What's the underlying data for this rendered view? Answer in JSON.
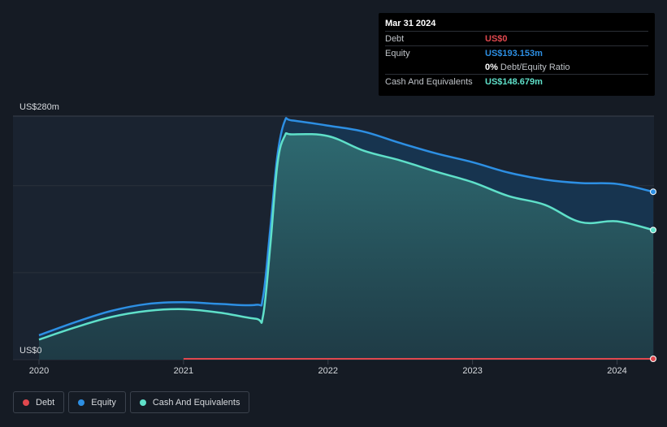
{
  "chart_data": {
    "type": "area",
    "y_top_label": "US$280m",
    "y_bottom_label": "US$0",
    "ylim": [
      0,
      280
    ],
    "xlim": [
      2020.0,
      2024.25
    ],
    "x_ticks": [
      {
        "value": 2020.0,
        "label": "2020"
      },
      {
        "value": 2021.0,
        "label": "2021"
      },
      {
        "value": 2022.0,
        "label": "2022"
      },
      {
        "value": 2023.0,
        "label": "2023"
      },
      {
        "value": 2024.0,
        "label": "2024"
      }
    ],
    "series": [
      {
        "name": "Equity",
        "color": "#2d8fe3",
        "points": [
          [
            2020.0,
            28
          ],
          [
            2020.25,
            43
          ],
          [
            2020.5,
            56
          ],
          [
            2020.75,
            64
          ],
          [
            2021.0,
            66
          ],
          [
            2021.25,
            64
          ],
          [
            2021.5,
            63
          ],
          [
            2021.55,
            72
          ],
          [
            2021.6,
            150
          ],
          [
            2021.65,
            235
          ],
          [
            2021.7,
            274
          ],
          [
            2021.75,
            275
          ],
          [
            2022.0,
            269
          ],
          [
            2022.25,
            262
          ],
          [
            2022.5,
            249
          ],
          [
            2022.75,
            237
          ],
          [
            2023.0,
            227
          ],
          [
            2023.25,
            215
          ],
          [
            2023.5,
            207
          ],
          [
            2023.75,
            203
          ],
          [
            2024.0,
            202
          ],
          [
            2024.25,
            193
          ]
        ]
      },
      {
        "name": "Cash And Equivalents",
        "color": "#5fe0c9",
        "points": [
          [
            2020.0,
            23
          ],
          [
            2020.25,
            37
          ],
          [
            2020.5,
            49
          ],
          [
            2020.75,
            56
          ],
          [
            2021.0,
            58
          ],
          [
            2021.25,
            54
          ],
          [
            2021.5,
            47
          ],
          [
            2021.55,
            50
          ],
          [
            2021.6,
            130
          ],
          [
            2021.65,
            225
          ],
          [
            2021.7,
            257
          ],
          [
            2021.75,
            259
          ],
          [
            2022.0,
            257
          ],
          [
            2022.25,
            240
          ],
          [
            2022.5,
            229
          ],
          [
            2022.75,
            216
          ],
          [
            2023.0,
            204
          ],
          [
            2023.25,
            188
          ],
          [
            2023.5,
            178
          ],
          [
            2023.75,
            158
          ],
          [
            2024.0,
            159
          ],
          [
            2024.25,
            149
          ]
        ]
      },
      {
        "name": "Debt",
        "color": "#e0484e",
        "points": [
          [
            2021.0,
            0
          ],
          [
            2024.25,
            0
          ]
        ]
      }
    ]
  },
  "tooltip": {
    "date": "Mar 31 2024",
    "rows": [
      {
        "label": "Debt",
        "value": "US$0",
        "color": "#e0484e"
      },
      {
        "label": "Equity",
        "value": "US$193.153m",
        "color": "#2d8fe3"
      },
      {
        "label": "",
        "value": "0%",
        "suffix": "Debt/Equity Ratio",
        "color": "#ffffff"
      },
      {
        "label": "Cash And Equivalents",
        "value": "US$148.679m",
        "color": "#5fe0c9"
      }
    ]
  },
  "legend": [
    {
      "label": "Debt",
      "color": "#e0484e"
    },
    {
      "label": "Equity",
      "color": "#2d8fe3"
    },
    {
      "label": "Cash And Equivalents",
      "color": "#5fe0c9"
    }
  ]
}
